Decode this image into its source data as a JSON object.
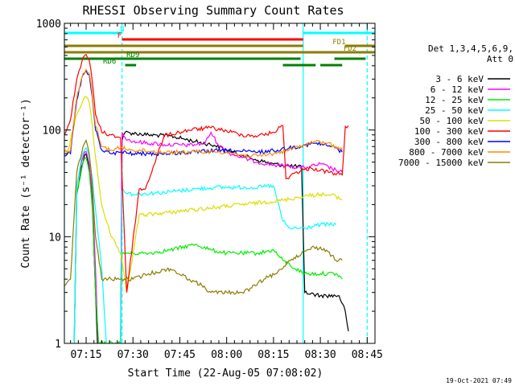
{
  "chart_data": {
    "type": "line",
    "title": "RHESSI Observing Summary Count Rates",
    "xlabel": "Start Time (22-Aug-05 07:08:02)",
    "ylabel": "Count Rate (s⁻¹ detector⁻¹)",
    "footer": "19-Oct-2021 07:49",
    "y_scale": "log",
    "ylim": [
      1,
      1000
    ],
    "xlim": [
      "07:08:02",
      "08:47:30"
    ],
    "y_ticks": [
      {
        "v": 1,
        "label": "1"
      },
      {
        "v": 10,
        "label": "10"
      },
      {
        "v": 100,
        "label": "100"
      },
      {
        "v": 1000,
        "label": "1000"
      }
    ],
    "x_ticks": [
      "07:15",
      "07:30",
      "07:45",
      "08:00",
      "08:15",
      "08:30",
      "08:45"
    ],
    "legend": {
      "header": [
        "Det 1,3,4,5,6,9,",
        "Att 0"
      ],
      "position": "right"
    },
    "series": [
      {
        "name": "3 - 6 keV",
        "color": "#000000",
        "points": [
          [
            "07:08:02",
            0
          ],
          [
            "07:11",
            0
          ],
          [
            "07:12",
            25
          ],
          [
            "07:13:30",
            45
          ],
          [
            "07:14:30",
            58
          ],
          [
            "07:15",
            60
          ],
          [
            "07:16",
            45
          ],
          [
            "07:17",
            20
          ],
          [
            "07:18",
            3
          ],
          [
            "07:19",
            0.5
          ],
          [
            "07:26",
            0.5
          ],
          [
            "07:26:30",
            80
          ],
          [
            "07:27:30",
            95
          ],
          [
            "07:35",
            90
          ],
          [
            "07:42",
            88
          ],
          [
            "07:50",
            78
          ],
          [
            "07:56",
            72
          ],
          [
            "08:00",
            65
          ],
          [
            "08:05",
            58
          ],
          [
            "08:10",
            52
          ],
          [
            "08:15",
            48
          ],
          [
            "08:20",
            46
          ],
          [
            "08:24",
            45
          ],
          [
            "08:25",
            3
          ],
          [
            "08:30",
            2.8
          ],
          [
            "08:36",
            2.8
          ],
          [
            "08:38",
            2.0
          ],
          [
            "08:39",
            1.3
          ]
        ]
      },
      {
        "name": "6 - 12 keV",
        "color": "#ff00ff",
        "points": [
          [
            "07:08:02",
            0
          ],
          [
            "07:11",
            0
          ],
          [
            "07:12",
            30
          ],
          [
            "07:13:30",
            50
          ],
          [
            "07:14:30",
            62
          ],
          [
            "07:15",
            63
          ],
          [
            "07:16",
            48
          ],
          [
            "07:17",
            25
          ],
          [
            "07:18",
            5
          ],
          [
            "07:19",
            0.8
          ],
          [
            "07:26",
            0.8
          ],
          [
            "07:26:30",
            95
          ],
          [
            "07:27:30",
            85
          ],
          [
            "07:30",
            78
          ],
          [
            "07:40",
            73
          ],
          [
            "07:48",
            72
          ],
          [
            "07:53",
            75
          ],
          [
            "07:55",
            95
          ],
          [
            "07:57",
            75
          ],
          [
            "08:00",
            62
          ],
          [
            "08:05",
            55
          ],
          [
            "08:10",
            50
          ],
          [
            "08:15",
            47
          ],
          [
            "08:20",
            46
          ],
          [
            "08:25",
            44
          ],
          [
            "08:30",
            48
          ],
          [
            "08:35",
            42
          ],
          [
            "08:37",
            40
          ]
        ]
      },
      {
        "name": "12 - 25 keV",
        "color": "#00ee00",
        "points": [
          [
            "07:08:02",
            0
          ],
          [
            "07:11",
            0
          ],
          [
            "07:12",
            25
          ],
          [
            "07:13:30",
            42
          ],
          [
            "07:14:30",
            54
          ],
          [
            "07:15",
            55
          ],
          [
            "07:16",
            40
          ],
          [
            "07:17",
            18
          ],
          [
            "07:18",
            3
          ],
          [
            "07:19",
            1
          ],
          [
            "07:26",
            1
          ],
          [
            "07:26:30",
            7
          ],
          [
            "07:30",
            7
          ],
          [
            "07:35",
            7
          ],
          [
            "07:42",
            7.5
          ],
          [
            "07:50",
            8.5
          ],
          [
            "07:55",
            7.5
          ],
          [
            "08:00",
            7
          ],
          [
            "08:05",
            7
          ],
          [
            "08:10",
            7
          ],
          [
            "08:15",
            7.5
          ],
          [
            "08:18",
            6
          ],
          [
            "08:22",
            5
          ],
          [
            "08:25",
            4.5
          ],
          [
            "08:30",
            4.5
          ],
          [
            "08:35",
            4.5
          ],
          [
            "08:37",
            4
          ]
        ]
      },
      {
        "name": "25 - 50 keV",
        "color": "#00ffff",
        "points": [
          [
            "07:08:02",
            0
          ],
          [
            "07:11",
            0
          ],
          [
            "07:12",
            30
          ],
          [
            "07:13:30",
            55
          ],
          [
            "07:14:30",
            65
          ],
          [
            "07:15",
            68
          ],
          [
            "07:16",
            55
          ],
          [
            "07:17",
            35
          ],
          [
            "07:18",
            18
          ],
          [
            "07:20",
            5
          ],
          [
            "07:22",
            0.6
          ],
          [
            "07:26",
            0.6
          ],
          [
            "07:26:30",
            27
          ],
          [
            "07:30",
            25
          ],
          [
            "07:40",
            26
          ],
          [
            "07:50",
            28
          ],
          [
            "07:56",
            29
          ],
          [
            "08:00",
            29
          ],
          [
            "08:06",
            29
          ],
          [
            "08:10",
            29
          ],
          [
            "08:15",
            30
          ],
          [
            "08:18",
            14
          ],
          [
            "08:20",
            12
          ],
          [
            "08:25",
            12
          ],
          [
            "08:30",
            13
          ],
          [
            "08:35",
            13
          ]
        ]
      },
      {
        "name": "50 - 100 keV",
        "color": "#dddd00",
        "points": [
          [
            "07:08:02",
            60
          ],
          [
            "07:09",
            62
          ],
          [
            "07:10",
            80
          ],
          [
            "07:12",
            140
          ],
          [
            "07:14",
            190
          ],
          [
            "07:15",
            205
          ],
          [
            "07:16",
            180
          ],
          [
            "07:17",
            110
          ],
          [
            "07:18",
            55
          ],
          [
            "07:20",
            20
          ],
          [
            "07:23",
            10
          ],
          [
            "07:26",
            7
          ],
          [
            "07:28",
            3
          ],
          [
            "07:32",
            16
          ],
          [
            "07:34",
            16
          ],
          [
            "08:18",
            22
          ],
          [
            "08:25",
            24
          ],
          [
            "08:30",
            25
          ],
          [
            "08:35",
            24
          ],
          [
            "08:37",
            22
          ]
        ]
      },
      {
        "name": "100 - 300 keV",
        "color": "#ff0000",
        "points": [
          [
            "07:08:02",
            90
          ],
          [
            "07:10",
            125
          ],
          [
            "07:12",
            300
          ],
          [
            "07:14",
            480
          ],
          [
            "07:15",
            510
          ],
          [
            "07:16",
            450
          ],
          [
            "07:17",
            280
          ],
          [
            "07:18",
            140
          ],
          [
            "07:20",
            95
          ],
          [
            "07:23",
            90
          ],
          [
            "07:26",
            85
          ],
          [
            "07:28",
            3
          ],
          [
            "07:32",
            28
          ],
          [
            "07:34",
            28
          ],
          [
            "07:40",
            88
          ],
          [
            "07:48",
            100
          ],
          [
            "07:55",
            105
          ],
          [
            "08:00",
            98
          ],
          [
            "08:05",
            90
          ],
          [
            "08:10",
            88
          ],
          [
            "08:15",
            95
          ],
          [
            "08:18",
            110
          ],
          [
            "08:19",
            35
          ],
          [
            "08:22",
            40
          ],
          [
            "08:27",
            44
          ],
          [
            "08:33",
            40
          ],
          [
            "08:37",
            38
          ],
          [
            "08:38",
            108
          ],
          [
            "08:39",
            110
          ]
        ]
      },
      {
        "name": "300 - 800 keV",
        "color": "#0000ff",
        "points": [
          [
            "07:08:02",
            58
          ],
          [
            "07:10",
            60
          ],
          [
            "07:12",
            190
          ],
          [
            "07:14",
            330
          ],
          [
            "07:15",
            360
          ],
          [
            "07:16",
            330
          ],
          [
            "07:17",
            200
          ],
          [
            "07:18",
            100
          ],
          [
            "07:20",
            65
          ],
          [
            "07:23",
            60
          ],
          [
            "07:26",
            62
          ],
          [
            "07:30",
            60
          ],
          [
            "07:40",
            60
          ],
          [
            "07:50",
            62
          ],
          [
            "07:56",
            64
          ],
          [
            "08:00",
            64
          ],
          [
            "08:05",
            63
          ],
          [
            "08:10",
            62
          ],
          [
            "08:15",
            64
          ],
          [
            "08:20",
            68
          ],
          [
            "08:25",
            72
          ],
          [
            "08:28",
            75
          ],
          [
            "08:32",
            72
          ],
          [
            "08:35",
            68
          ],
          [
            "08:37",
            62
          ]
        ]
      },
      {
        "name": "800 - 7000 keV",
        "color": "#ff8c00",
        "points": [
          [
            "07:08:02",
            62
          ],
          [
            "07:10",
            65
          ],
          [
            "07:12",
            200
          ],
          [
            "07:14",
            340
          ],
          [
            "07:15",
            370
          ],
          [
            "07:16",
            340
          ],
          [
            "07:17",
            210
          ],
          [
            "07:18",
            110
          ],
          [
            "07:20",
            70
          ],
          [
            "07:23",
            65
          ],
          [
            "07:26",
            68
          ],
          [
            "07:30",
            65
          ],
          [
            "07:40",
            62
          ],
          [
            "07:50",
            62
          ],
          [
            "07:56",
            63
          ],
          [
            "08:00",
            62
          ],
          [
            "08:05",
            58
          ],
          [
            "08:10",
            57
          ],
          [
            "08:15",
            60
          ],
          [
            "08:20",
            65
          ],
          [
            "08:25",
            73
          ],
          [
            "08:28",
            78
          ],
          [
            "08:32",
            75
          ],
          [
            "08:35",
            70
          ],
          [
            "08:37",
            65
          ]
        ]
      },
      {
        "name": "7000 - 15000 keV",
        "color": "#8b7d00",
        "points": [
          [
            "07:08:02",
            3.5
          ],
          [
            "07:10",
            4
          ],
          [
            "07:12",
            40
          ],
          [
            "07:14",
            70
          ],
          [
            "07:15",
            80
          ],
          [
            "07:16",
            60
          ],
          [
            "07:17",
            30
          ],
          [
            "07:18",
            10
          ],
          [
            "07:20",
            4
          ],
          [
            "07:23",
            4
          ],
          [
            "07:26",
            4
          ],
          [
            "07:30",
            4
          ],
          [
            "07:35",
            4.5
          ],
          [
            "07:42",
            5
          ],
          [
            "07:48",
            4
          ],
          [
            "07:52",
            3.5
          ],
          [
            "07:55",
            3
          ],
          [
            "08:00",
            3
          ],
          [
            "08:05",
            3
          ],
          [
            "08:08",
            3.3
          ],
          [
            "08:12",
            4
          ],
          [
            "08:16",
            4.5
          ],
          [
            "08:20",
            6
          ],
          [
            "08:24",
            7
          ],
          [
            "08:28",
            8
          ],
          [
            "08:32",
            7.5
          ],
          [
            "08:35",
            6
          ],
          [
            "08:37",
            6
          ]
        ]
      }
    ],
    "state_bars": [
      {
        "label": "N",
        "color": "#00ffff",
        "row": 0,
        "segments": [
          [
            "07:08:02",
            "07:26:30"
          ],
          [
            "08:24:30",
            "08:47:30"
          ]
        ],
        "label_at": "07:26:30"
      },
      {
        "label": "F",
        "color": "#ff0000",
        "row": 1,
        "segments": [
          [
            "07:26:30",
            "08:24:30"
          ]
        ],
        "label_at": "07:25:40"
      },
      {
        "label": "FD1",
        "color": "#8b7d00",
        "row": 2,
        "segments": [
          [
            "07:08:02",
            "08:24:30"
          ],
          [
            "08:38:00",
            "08:47:30"
          ]
        ],
        "label_at": "08:36:00"
      },
      {
        "label": "FD2",
        "color": "#8b7d00",
        "row": 3,
        "segments": [
          [
            "07:08:02",
            "08:47:30"
          ]
        ],
        "label_at": "08:39:30"
      },
      {
        "label": "RD9",
        "color": "#008000",
        "row": 4,
        "segments": [
          [
            "07:08:02",
            "08:23:40"
          ],
          [
            "08:34:30",
            "08:44:30"
          ]
        ],
        "label_at": "07:30:00"
      },
      {
        "label": "RD6",
        "color": "#008000",
        "row": 5,
        "segments": [
          [
            "07:27:30",
            "07:31:00"
          ],
          [
            "08:18:00",
            "08:28:30"
          ],
          [
            "08:30:00",
            "08:37:00"
          ]
        ],
        "label_at": "07:22:30"
      }
    ],
    "markers": [
      {
        "time": "07:08:02",
        "color": "#00ffff",
        "style": "solid"
      },
      {
        "time": "07:26:30",
        "color": "#00ffff",
        "style": "dashed"
      },
      {
        "time": "08:24:30",
        "color": "#00ffff",
        "style": "solid"
      },
      {
        "time": "08:45:00",
        "color": "#00ffff",
        "style": "dashed"
      }
    ]
  }
}
